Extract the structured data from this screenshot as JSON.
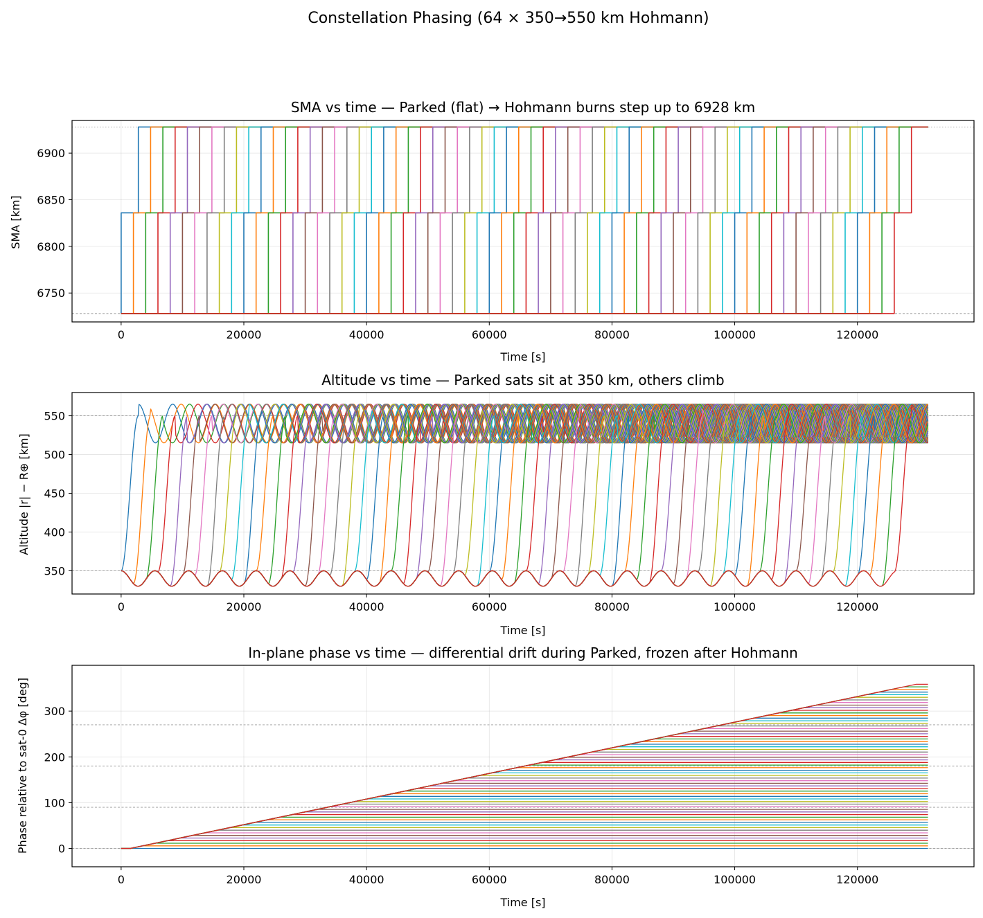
{
  "figure": {
    "suptitle": "Constellation Phasing (64 × 350→550 km Hohmann)"
  },
  "palette": [
    "#1f77b4",
    "#ff7f0e",
    "#2ca02c",
    "#d62728",
    "#9467bd",
    "#8c564b",
    "#e377c2",
    "#7f7f7f",
    "#bcbd22",
    "#17becf"
  ],
  "chart_data": [
    {
      "type": "line",
      "title": "SMA vs time — Parked (flat) → Hohmann burns step up to 6928 km",
      "xlabel": "Time [s]",
      "ylabel": "SMA [km]",
      "xlim": [
        -8000,
        139000
      ],
      "ylim": [
        6719,
        6935
      ],
      "xticks": [
        0,
        20000,
        40000,
        60000,
        80000,
        100000,
        120000
      ],
      "yticks": [
        6750,
        6800,
        6850,
        6900
      ],
      "grid": true,
      "reference_lines": [
        6728,
        6928
      ],
      "n_series": 64,
      "series_model": {
        "parked_sma": 6728,
        "transfer_sma": 6836,
        "final_sma": 6928,
        "first_burn_times": [
          0,
          126000
        ],
        "transfer_duration_s": 2800,
        "t_end": 131500
      }
    },
    {
      "type": "line",
      "title": "Altitude vs time — Parked sats sit at 350 km, others climb",
      "xlabel": "Time [s]",
      "ylabel": "Altitude |r| − R⊕ [km]",
      "xlim": [
        -8000,
        139000
      ],
      "ylim": [
        320,
        580
      ],
      "xticks": [
        0,
        20000,
        40000,
        60000,
        80000,
        100000,
        120000
      ],
      "yticks": [
        350,
        400,
        450,
        500,
        550
      ],
      "grid": true,
      "reference_lines": [
        350,
        550
      ],
      "n_series": 64,
      "series_model": {
        "parked_altitude_mean": 340,
        "parked_altitude_amplitude": 10,
        "final_altitude_mean": 540,
        "final_altitude_amplitude": 25,
        "orbital_period_s": 5500,
        "first_burn_times": [
          0,
          126000
        ],
        "transfer_duration_s": 2800,
        "t_end": 131500
      }
    },
    {
      "type": "line",
      "title": "In-plane phase vs time — differential drift during Parked, frozen after Hohmann",
      "xlabel": "Time [s]",
      "ylabel": "Phase relative to sat-0 Δφ [deg]",
      "xlim": [
        -8000,
        139000
      ],
      "ylim": [
        -40,
        400
      ],
      "xticks": [
        0,
        20000,
        40000,
        60000,
        80000,
        100000,
        120000
      ],
      "yticks": [
        0,
        100,
        200,
        300
      ],
      "grid": true,
      "reference_lines": [
        0,
        90,
        180,
        270
      ],
      "n_series": 64,
      "series_model": {
        "drift_start_s": 1500,
        "drift_rate_deg_per_s": 0.0028,
        "final_phase_deg": [
          0,
          358.6
        ],
        "t_end": 131500
      }
    }
  ]
}
